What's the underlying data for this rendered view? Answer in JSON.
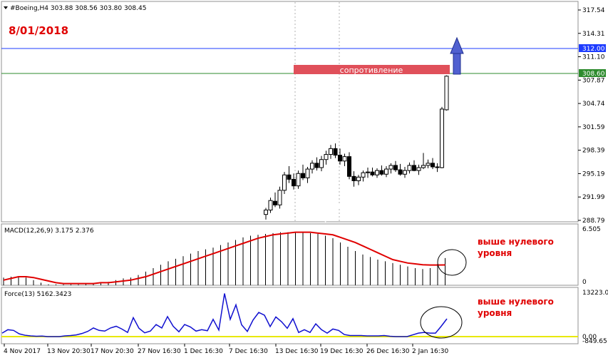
{
  "header": {
    "symbol_line": "#Boeing,H4  303.88 308.56 303.80 308.45",
    "date": "8/01/2018"
  },
  "main_panel": {
    "resistance_label": "сопротивление",
    "price_labels": [
      "317.54",
      "314.31",
      "311.10",
      "307.87",
      "304.74",
      "301.59",
      "298.39",
      "295.19",
      "291.99",
      "288.79"
    ],
    "levels": [
      {
        "name": "blue-level",
        "value": 312.0,
        "label": "312.00",
        "color": "#1e3cff"
      },
      {
        "name": "green-level",
        "value": 308.6,
        "label": "308.60",
        "color": "#2e8b2e"
      }
    ]
  },
  "macd_panel": {
    "title": "MACD(12,26,9) 3.175 2.376",
    "scale_top": "6.505",
    "scale_zero": "0",
    "annotation": [
      "выше нулевого",
      "уровня"
    ]
  },
  "force_panel": {
    "title": "Force(13) 5162.3423",
    "scale_top": "13223.00",
    "scale_zero": "0.00",
    "scale_low": "-849.65",
    "annotation": [
      "выше нулевого",
      "уровня"
    ]
  },
  "time_axis": [
    "4 Nov 2017",
    "13 Nov 20:30",
    "17 Nov 20:30",
    "27 Nov 16:30",
    "1 Dec 16:30",
    "7 Dec 16:30",
    "13 Dec 16:30",
    "19 Dec 16:30",
    "26 Dec 16:30",
    "2 Jan 16:30"
  ],
  "colors": {
    "resistance_box": "#e0505a",
    "arrow": "#5060d0",
    "macd_signal": "#e00000",
    "force_line": "#1010d0",
    "force_zero": "#e8e800",
    "annotation": "#e00000"
  },
  "chart_data": [
    {
      "type": "candlestick",
      "title": "#Boeing,H4",
      "ylim": [
        288.79,
        317.54
      ],
      "ohlc": [
        [
          289.6,
          290.5,
          288.9,
          290.2
        ],
        [
          290.2,
          291.9,
          289.8,
          291.5
        ],
        [
          291.4,
          292.6,
          290.6,
          290.9
        ],
        [
          290.9,
          293.4,
          290.4,
          292.9
        ],
        [
          292.9,
          295.4,
          292.4,
          295.0
        ],
        [
          295.0,
          296.2,
          293.9,
          294.4
        ],
        [
          294.4,
          295.2,
          293.0,
          293.5
        ],
        [
          293.5,
          295.6,
          293.1,
          295.2
        ],
        [
          295.2,
          296.4,
          294.3,
          294.6
        ],
        [
          294.6,
          296.1,
          293.9,
          295.8
        ],
        [
          295.8,
          297.0,
          295.2,
          296.6
        ],
        [
          296.6,
          297.4,
          295.6,
          296.0
        ],
        [
          296.0,
          297.6,
          295.5,
          297.1
        ],
        [
          297.1,
          298.3,
          296.4,
          297.8
        ],
        [
          297.8,
          299.1,
          297.2,
          298.6
        ],
        [
          298.6,
          299.3,
          297.3,
          297.7
        ],
        [
          297.7,
          298.6,
          296.4,
          296.9
        ],
        [
          296.9,
          297.9,
          296.2,
          297.5
        ],
        [
          297.5,
          298.1,
          294.4,
          294.8
        ],
        [
          294.8,
          295.5,
          293.4,
          294.2
        ],
        [
          294.2,
          295.0,
          293.6,
          294.7
        ],
        [
          294.7,
          295.6,
          294.1,
          295.3
        ],
        [
          295.3,
          296.0,
          294.6,
          295.4
        ],
        [
          295.4,
          296.0,
          294.8,
          295.0
        ],
        [
          295.0,
          295.9,
          294.6,
          295.6
        ],
        [
          295.6,
          296.3,
          294.9,
          295.1
        ],
        [
          295.1,
          296.2,
          294.7,
          295.8
        ],
        [
          295.8,
          296.6,
          295.2,
          296.3
        ],
        [
          296.3,
          296.9,
          295.4,
          295.7
        ],
        [
          295.7,
          296.5,
          294.9,
          295.1
        ],
        [
          295.1,
          296.1,
          294.6,
          295.6
        ],
        [
          295.6,
          296.7,
          295.2,
          296.3
        ],
        [
          296.3,
          297.0,
          295.5,
          295.6
        ],
        [
          295.6,
          296.4,
          295.0,
          296.0
        ],
        [
          296.0,
          298.0,
          295.8,
          296.3
        ],
        [
          296.3,
          297.1,
          295.9,
          296.6
        ],
        [
          296.6,
          297.3,
          295.8,
          296.1
        ],
        [
          296.1,
          296.6,
          295.4,
          296.0
        ],
        [
          296.0,
          304.3,
          295.9,
          304.0
        ],
        [
          303.9,
          308.6,
          303.8,
          308.5
        ]
      ]
    },
    {
      "type": "bar",
      "title": "MACD(12,26,9)",
      "ylim": [
        0,
        6.505
      ],
      "values": [
        0.9,
        1.0,
        1.0,
        0.9,
        0.6,
        0.3,
        0.1,
        0.1,
        0.1,
        0.1,
        0.1,
        0.2,
        0.2,
        0.3,
        0.4,
        0.6,
        0.8,
        0.9,
        1.2,
        1.6,
        2.0,
        2.4,
        2.8,
        3.1,
        3.4,
        3.7,
        4.0,
        4.2,
        4.4,
        4.7,
        5.0,
        5.3,
        5.6,
        5.8,
        5.9,
        6.0,
        6.1,
        6.2,
        6.2,
        6.2,
        6.2,
        6.1,
        6.0,
        5.8,
        5.5,
        5.0,
        4.5,
        4.0,
        3.6,
        3.3,
        3.0,
        2.8,
        2.6,
        2.4,
        2.2,
        2.0,
        1.9,
        2.0,
        2.5,
        3.175
      ],
      "signal": [
        0.6,
        0.8,
        1.0,
        1.0,
        0.9,
        0.7,
        0.5,
        0.3,
        0.2,
        0.2,
        0.2,
        0.2,
        0.2,
        0.3,
        0.3,
        0.4,
        0.5,
        0.6,
        0.8,
        1.0,
        1.3,
        1.6,
        1.9,
        2.2,
        2.5,
        2.8,
        3.1,
        3.4,
        3.7,
        4.0,
        4.3,
        4.6,
        4.9,
        5.2,
        5.5,
        5.7,
        5.9,
        6.0,
        6.1,
        6.2,
        6.2,
        6.2,
        6.1,
        6.0,
        5.9,
        5.6,
        5.3,
        5.0,
        4.6,
        4.2,
        3.8,
        3.4,
        3.0,
        2.8,
        2.6,
        2.5,
        2.4,
        2.37,
        2.37,
        2.376
      ]
    },
    {
      "type": "line",
      "title": "Force(13)",
      "ylim": [
        -849.65,
        13223.0
      ],
      "values": [
        1000,
        2000,
        1800,
        800,
        400,
        200,
        100,
        150,
        0,
        0,
        0,
        200,
        300,
        500,
        900,
        1500,
        2500,
        1800,
        1600,
        2500,
        3000,
        2200,
        1200,
        5500,
        2400,
        1100,
        1600,
        3500,
        2500,
        5800,
        3000,
        1400,
        3500,
        2800,
        1600,
        2000,
        1700,
        5000,
        1900,
        12500,
        5000,
        9200,
        3400,
        1500,
        4800,
        7000,
        6200,
        2900,
        5700,
        4300,
        2400,
        5200,
        1200,
        2000,
        1200,
        3700,
        2000,
        1000,
        2200,
        1800,
        600,
        300,
        300,
        300,
        200,
        200,
        200,
        300,
        100,
        0,
        0,
        0,
        500,
        1000,
        1200,
        1000,
        1000,
        3000,
        5162
      ]
    }
  ]
}
